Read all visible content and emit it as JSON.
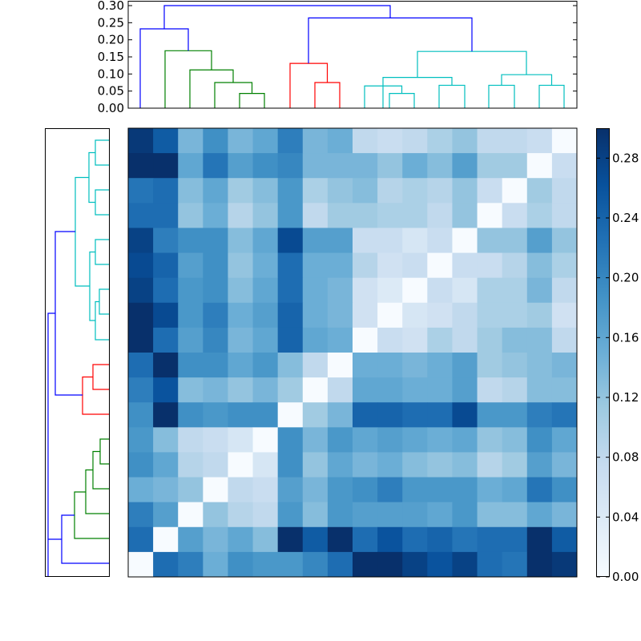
{
  "chart_data": [
    {
      "type": "heatmap",
      "title": "",
      "description": "Clustered distance matrix (18x18) with row and column dendrograms",
      "rows": 18,
      "cols": 18,
      "colormap": "Blues",
      "vmin": 0.0,
      "vmax": 0.3,
      "values": [
        [
          0.29,
          0.25,
          0.14,
          0.19,
          0.14,
          0.16,
          0.21,
          0.14,
          0.15,
          0.08,
          0.07,
          0.08,
          0.1,
          0.12,
          0.08,
          0.08,
          0.07,
          0.0
        ],
        [
          0.3,
          0.3,
          0.16,
          0.22,
          0.17,
          0.19,
          0.2,
          0.14,
          0.14,
          0.14,
          0.12,
          0.15,
          0.13,
          0.17,
          0.11,
          0.11,
          0.0,
          0.07
        ],
        [
          0.22,
          0.23,
          0.13,
          0.16,
          0.11,
          0.13,
          0.18,
          0.1,
          0.12,
          0.13,
          0.09,
          0.1,
          0.09,
          0.12,
          0.07,
          0.0,
          0.11,
          0.08
        ],
        [
          0.23,
          0.23,
          0.12,
          0.15,
          0.09,
          0.12,
          0.18,
          0.08,
          0.11,
          0.11,
          0.1,
          0.1,
          0.08,
          0.12,
          0.0,
          0.07,
          0.1,
          0.08
        ],
        [
          0.28,
          0.21,
          0.19,
          0.19,
          0.13,
          0.16,
          0.27,
          0.17,
          0.17,
          0.07,
          0.07,
          0.05,
          0.07,
          0.0,
          0.12,
          0.12,
          0.17,
          0.12
        ],
        [
          0.27,
          0.24,
          0.17,
          0.19,
          0.12,
          0.15,
          0.23,
          0.15,
          0.15,
          0.09,
          0.06,
          0.07,
          0.0,
          0.07,
          0.07,
          0.09,
          0.13,
          0.1
        ],
        [
          0.28,
          0.23,
          0.18,
          0.19,
          0.13,
          0.16,
          0.23,
          0.15,
          0.14,
          0.06,
          0.04,
          0.0,
          0.07,
          0.05,
          0.1,
          0.1,
          0.14,
          0.08
        ],
        [
          0.3,
          0.27,
          0.18,
          0.21,
          0.15,
          0.17,
          0.24,
          0.15,
          0.14,
          0.06,
          0.0,
          0.05,
          0.06,
          0.08,
          0.1,
          0.1,
          0.11,
          0.06
        ],
        [
          0.3,
          0.23,
          0.17,
          0.2,
          0.14,
          0.16,
          0.24,
          0.16,
          0.15,
          0.0,
          0.07,
          0.06,
          0.1,
          0.08,
          0.11,
          0.13,
          0.13,
          0.08
        ],
        [
          0.23,
          0.3,
          0.19,
          0.19,
          0.16,
          0.18,
          0.13,
          0.08,
          0.0,
          0.15,
          0.15,
          0.14,
          0.15,
          0.17,
          0.11,
          0.12,
          0.13,
          0.14
        ],
        [
          0.21,
          0.26,
          0.13,
          0.14,
          0.12,
          0.14,
          0.11,
          0.0,
          0.08,
          0.16,
          0.16,
          0.15,
          0.15,
          0.17,
          0.08,
          0.09,
          0.13,
          0.13
        ],
        [
          0.19,
          0.3,
          0.19,
          0.18,
          0.19,
          0.19,
          0.0,
          0.11,
          0.14,
          0.24,
          0.24,
          0.23,
          0.23,
          0.27,
          0.18,
          0.18,
          0.21,
          0.22
        ],
        [
          0.18,
          0.13,
          0.08,
          0.07,
          0.05,
          0.0,
          0.19,
          0.14,
          0.18,
          0.16,
          0.17,
          0.16,
          0.15,
          0.16,
          0.12,
          0.13,
          0.19,
          0.16
        ],
        [
          0.19,
          0.16,
          0.09,
          0.08,
          0.0,
          0.05,
          0.19,
          0.12,
          0.16,
          0.14,
          0.15,
          0.13,
          0.12,
          0.13,
          0.09,
          0.11,
          0.17,
          0.14
        ],
        [
          0.15,
          0.14,
          0.12,
          0.0,
          0.08,
          0.07,
          0.17,
          0.14,
          0.18,
          0.19,
          0.21,
          0.18,
          0.18,
          0.18,
          0.15,
          0.16,
          0.22,
          0.19
        ],
        [
          0.21,
          0.17,
          0.0,
          0.12,
          0.09,
          0.08,
          0.18,
          0.13,
          0.18,
          0.17,
          0.17,
          0.17,
          0.16,
          0.18,
          0.13,
          0.13,
          0.16,
          0.14
        ],
        [
          0.23,
          0.0,
          0.17,
          0.14,
          0.16,
          0.13,
          0.3,
          0.25,
          0.3,
          0.23,
          0.26,
          0.23,
          0.24,
          0.22,
          0.23,
          0.23,
          0.3,
          0.25
        ],
        [
          0.0,
          0.23,
          0.21,
          0.15,
          0.19,
          0.18,
          0.18,
          0.2,
          0.23,
          0.3,
          0.3,
          0.28,
          0.26,
          0.28,
          0.23,
          0.22,
          0.3,
          0.29
        ]
      ],
      "xticklabels": [],
      "yticklabels": []
    },
    {
      "type": "colorbar",
      "orientation": "vertical",
      "range": [
        0.0,
        0.3
      ],
      "ticks": [
        "0.00",
        "0.04",
        "0.08",
        "0.12",
        "0.16",
        "0.20",
        "0.24",
        "0.28"
      ],
      "tick_values": [
        0.0,
        0.04,
        0.08,
        0.12,
        0.16,
        0.2,
        0.24,
        0.28
      ]
    },
    {
      "type": "dendrogram",
      "position": "top",
      "ylim": [
        0.0,
        0.3
      ],
      "yticks": [
        "0.00",
        "0.05",
        "0.10",
        "0.15",
        "0.20",
        "0.25",
        "0.30"
      ],
      "ytick_values": [
        0.0,
        0.05,
        0.1,
        0.15,
        0.2,
        0.25,
        0.3
      ],
      "cluster_colors": [
        "blue",
        "green",
        "red",
        "cyan"
      ],
      "links": [
        {
          "color": "green",
          "x": [
            299,
            299,
            330,
            330
          ],
          "h": [
            0.0,
            0.043,
            0.043,
            0.0
          ]
        },
        {
          "color": "green",
          "x": [
            268,
            268,
            314.5,
            314.5
          ],
          "h": [
            0.0,
            0.075,
            0.075,
            0.043
          ]
        },
        {
          "color": "green",
          "x": [
            237,
            237,
            291,
            291
          ],
          "h": [
            0.0,
            0.112,
            0.112,
            0.075
          ]
        },
        {
          "color": "green",
          "x": [
            206,
            206,
            264,
            264
          ],
          "h": [
            0.0,
            0.168,
            0.168,
            0.112
          ]
        },
        {
          "color": "blue",
          "x": [
            175,
            175,
            235,
            235
          ],
          "h": [
            0.0,
            0.232,
            0.232,
            0.168
          ]
        },
        {
          "color": "red",
          "x": [
            393,
            393,
            424,
            424
          ],
          "h": [
            0.0,
            0.075,
            0.075,
            0.0
          ]
        },
        {
          "color": "red",
          "x": [
            362,
            362,
            408.5,
            408.5
          ],
          "h": [
            0.0,
            0.131,
            0.131,
            0.075
          ]
        },
        {
          "color": "cyan",
          "x": [
            486,
            486,
            517,
            517
          ],
          "h": [
            0.0,
            0.043,
            0.043,
            0.0
          ]
        },
        {
          "color": "cyan",
          "x": [
            455,
            455,
            501.5,
            501.5
          ],
          "h": [
            0.0,
            0.065,
            0.065,
            0.043
          ]
        },
        {
          "color": "cyan",
          "x": [
            548,
            548,
            580,
            580
          ],
          "h": [
            0.0,
            0.067,
            0.067,
            0.0
          ]
        },
        {
          "color": "cyan",
          "x": [
            478,
            478,
            564,
            564
          ],
          "h": [
            0.0,
            0.09,
            0.09,
            0.067
          ]
        },
        {
          "color": "cyan",
          "x": [
            610,
            610,
            642,
            642
          ],
          "h": [
            0.0,
            0.067,
            0.067,
            0.0
          ]
        },
        {
          "color": "cyan",
          "x": [
            673,
            673,
            704,
            704
          ],
          "h": [
            0.0,
            0.067,
            0.067,
            0.0
          ]
        },
        {
          "color": "cyan",
          "x": [
            626,
            626,
            688.5,
            688.5
          ],
          "h": [
            0.067,
            0.098,
            0.098,
            0.067
          ]
        },
        {
          "color": "cyan",
          "x": [
            521,
            521,
            657,
            657
          ],
          "h": [
            0.09,
            0.166,
            0.166,
            0.098
          ]
        },
        {
          "color": "blue",
          "x": [
            385,
            385,
            589,
            589
          ],
          "h": [
            0.131,
            0.264,
            0.264,
            0.166
          ]
        },
        {
          "color": "blue",
          "x": [
            205,
            205,
            487,
            487
          ],
          "h": [
            0.232,
            0.3,
            0.3,
            0.264
          ]
        }
      ]
    },
    {
      "type": "dendrogram",
      "position": "left",
      "note": "Row dendrogram, root on the left; same tree structure mirrored",
      "cluster_colors": [
        "cyan",
        "red",
        "green",
        "blue"
      ]
    }
  ]
}
